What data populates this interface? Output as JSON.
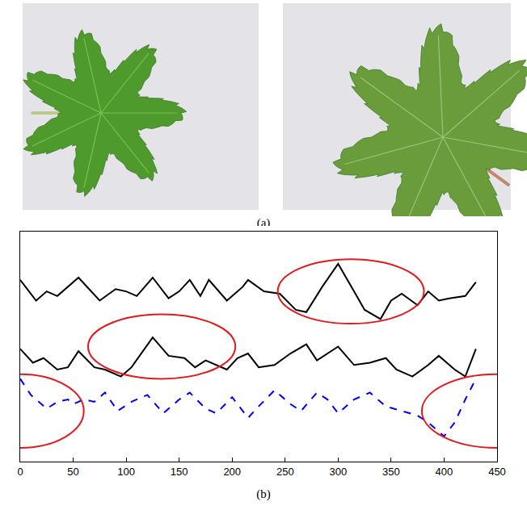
{
  "panel_a": {
    "label": "(a)",
    "photos": 2
  },
  "chart_data": {
    "type": "line",
    "label": "(b)",
    "xlim": [
      0,
      450
    ],
    "xticks": [
      0,
      50,
      100,
      150,
      200,
      250,
      300,
      350,
      400,
      450
    ],
    "ylim": [
      0,
      100
    ],
    "yticks": [],
    "tick_labels": "x",
    "grid": false,
    "series": [
      {
        "color": "#000000",
        "line_style": "solid",
        "x": [
          0,
          8,
          15,
          25,
          35,
          55,
          75,
          90,
          100,
          110,
          125,
          140,
          150,
          160,
          170,
          178,
          195,
          210,
          215,
          230,
          245,
          260,
          270,
          285,
          300,
          315,
          325,
          340,
          350,
          360,
          375,
          385,
          395,
          405,
          420,
          430
        ],
        "values": [
          79,
          74,
          70,
          74,
          72,
          80,
          70,
          75,
          74,
          72,
          80,
          71,
          74,
          79,
          72,
          79,
          70,
          76,
          79,
          74,
          73,
          66,
          65,
          76,
          86,
          74,
          66,
          62,
          70,
          73,
          68,
          74,
          70,
          71,
          72,
          78
        ]
      },
      {
        "color": "#000000",
        "line_style": "solid",
        "x": [
          0,
          12,
          22,
          35,
          45,
          55,
          70,
          80,
          95,
          105,
          125,
          140,
          155,
          165,
          175,
          195,
          205,
          215,
          225,
          240,
          255,
          270,
          280,
          290,
          300,
          315,
          330,
          345,
          355,
          370,
          385,
          395,
          410,
          420,
          430
        ],
        "values": [
          49,
          43,
          45,
          40,
          41,
          48,
          41,
          40,
          37,
          41,
          54,
          46,
          45,
          41,
          44,
          40,
          45,
          47,
          41,
          42,
          47,
          51,
          44,
          47,
          50,
          42,
          43,
          45,
          40,
          37,
          42,
          46,
          40,
          37,
          49
        ]
      },
      {
        "color": "#0000ff",
        "line_style": "dashed",
        "x": [
          0,
          10,
          25,
          35,
          45,
          50,
          60,
          70,
          80,
          92,
          105,
          120,
          135,
          150,
          160,
          175,
          185,
          200,
          215,
          225,
          240,
          255,
          265,
          280,
          290,
          300,
          315,
          330,
          345,
          360,
          375,
          385,
          400,
          410,
          420,
          430
        ],
        "values": [
          36,
          29,
          23,
          26,
          27,
          25,
          27,
          26,
          30,
          22,
          26,
          29,
          21,
          27,
          30,
          23,
          21,
          28,
          19,
          24,
          31,
          25,
          22,
          30,
          27,
          21,
          27,
          30,
          24,
          22,
          20,
          17,
          11,
          17,
          27,
          36
        ]
      }
    ],
    "highlights": [
      {
        "shape": "ellipse",
        "color": "#e3191c",
        "x": [
          243,
          381
        ],
        "y": [
          60,
          88
        ]
      },
      {
        "shape": "ellipse",
        "color": "#e3191c",
        "x": [
          64,
          203
        ],
        "y": [
          36,
          64
        ]
      },
      {
        "shape": "ellipse",
        "color": "#e3191c",
        "x": [
          -60,
          60
        ],
        "y": [
          6,
          38
        ]
      },
      {
        "shape": "ellipse",
        "color": "#e3191c",
        "x": [
          379,
          520
        ],
        "y": [
          6,
          38
        ]
      }
    ]
  }
}
